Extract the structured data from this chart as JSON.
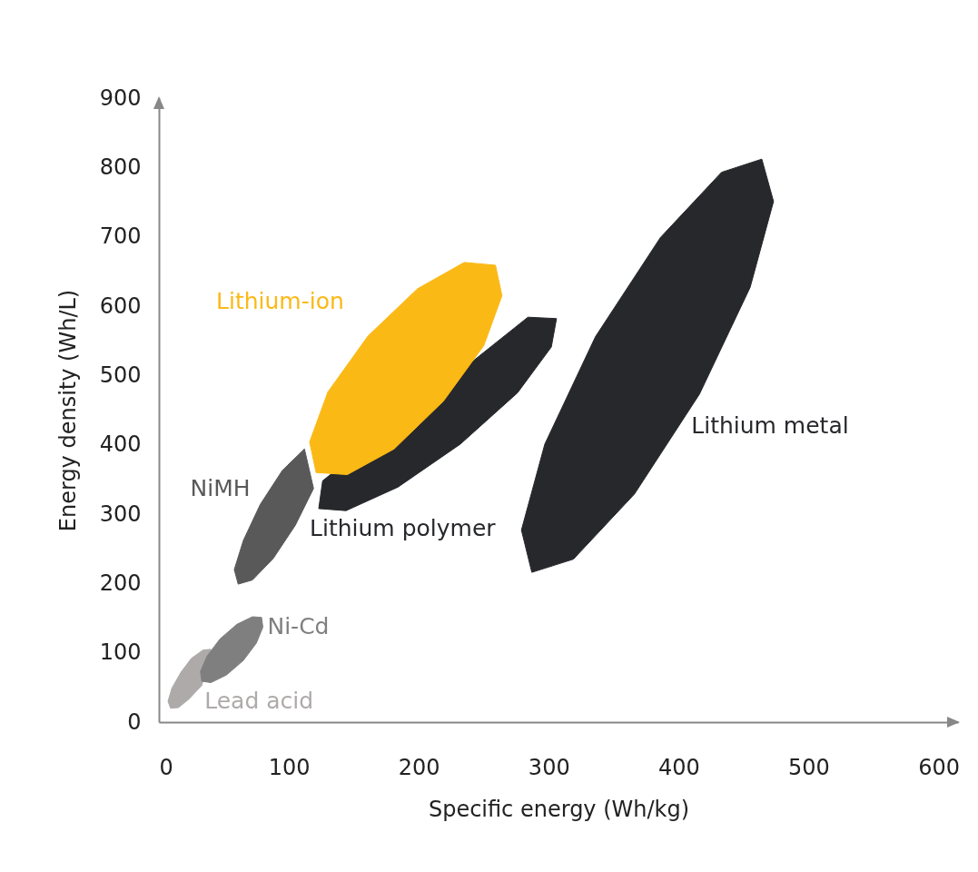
{
  "chart_data": {
    "type": "area",
    "xlabel": "Specific energy (Wh/kg)",
    "ylabel": "Energy density (Wh/L)",
    "xlim": [
      0,
      615
    ],
    "ylim": [
      0,
      900
    ],
    "xticks": [
      0,
      100,
      200,
      300,
      400,
      500,
      600
    ],
    "yticks": [
      0,
      100,
      200,
      300,
      400,
      500,
      600,
      700,
      800,
      900
    ],
    "series": [
      {
        "name": "Lead acid",
        "color": "#aeaaaa",
        "x": [
          40,
          33,
          23,
          15,
          9,
          7,
          10,
          17,
          25,
          34
        ],
        "values": [
          105,
          53,
          33,
          21,
          20,
          30,
          49,
          72,
          92,
          104
        ]
      },
      {
        "name": "Ni-Cd",
        "color": "#7f7f7f",
        "x": [
          79,
          80,
          75,
          65,
          52,
          40,
          33,
          32,
          37,
          47,
          60,
          72
        ],
        "values": [
          151,
          137,
          114,
          89,
          68,
          57,
          59,
          73,
          95,
          120,
          141,
          152
        ]
      },
      {
        "name": "NiMH",
        "color": "#595959",
        "x": [
          119,
          105,
          88,
          72,
          61,
          58,
          65,
          78,
          95,
          112
        ],
        "values": [
          337,
          284,
          236,
          205,
          199,
          220,
          262,
          314,
          363,
          394
        ]
      },
      {
        "name": "Lithium polymer",
        "color": "#27282c",
        "x": [
          306,
          302,
          276,
          232,
          184,
          144,
          123,
          126,
          284
        ],
        "values": [
          582,
          541,
          475,
          401,
          339,
          305,
          308,
          348,
          584
        ]
      },
      {
        "name": "Lithium-ion",
        "color": "#fbb916",
        "x": [
          259,
          264,
          250,
          219,
          181,
          145,
          121,
          116,
          130,
          161,
          199,
          235
        ],
        "values": [
          659,
          615,
          543,
          463,
          394,
          357,
          360,
          404,
          476,
          557,
          625,
          663
        ]
      },
      {
        "name": "Lithium metal",
        "color": "#27282c",
        "x": [
          464,
          473,
          455,
          416,
          366,
          319,
          287,
          279,
          297,
          336,
          386,
          433
        ],
        "values": [
          812,
          751,
          627,
          473,
          329,
          235,
          216,
          277,
          401,
          556,
          699,
          793
        ]
      }
    ]
  }
}
